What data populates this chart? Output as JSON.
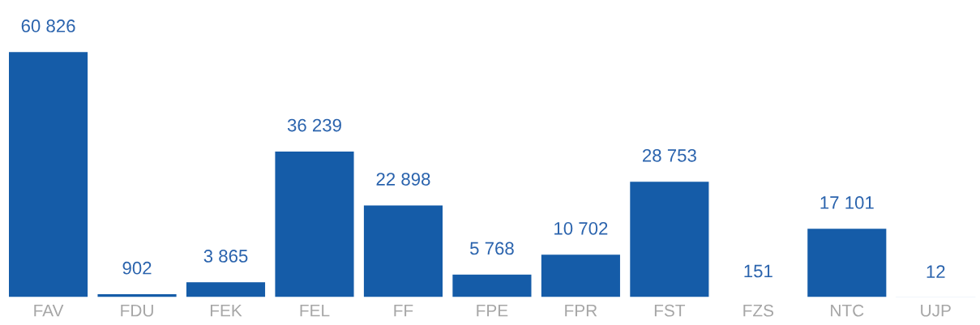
{
  "chart_data": {
    "type": "bar",
    "categories": [
      "FAV",
      "FDU",
      "FEK",
      "FEL",
      "FF",
      "FPE",
      "FPR",
      "FST",
      "FZS",
      "NTC",
      "UJP"
    ],
    "values": [
      60826,
      902,
      3865,
      36239,
      22898,
      5768,
      10702,
      28753,
      151,
      17101,
      12
    ],
    "value_labels": [
      "60 826",
      "902",
      "3 865",
      "36 239",
      "22 898",
      "5 768",
      "10 702",
      "28 753",
      "151",
      "17 101",
      "12"
    ],
    "color": "#155ca8",
    "grid": false,
    "legend": false
  }
}
